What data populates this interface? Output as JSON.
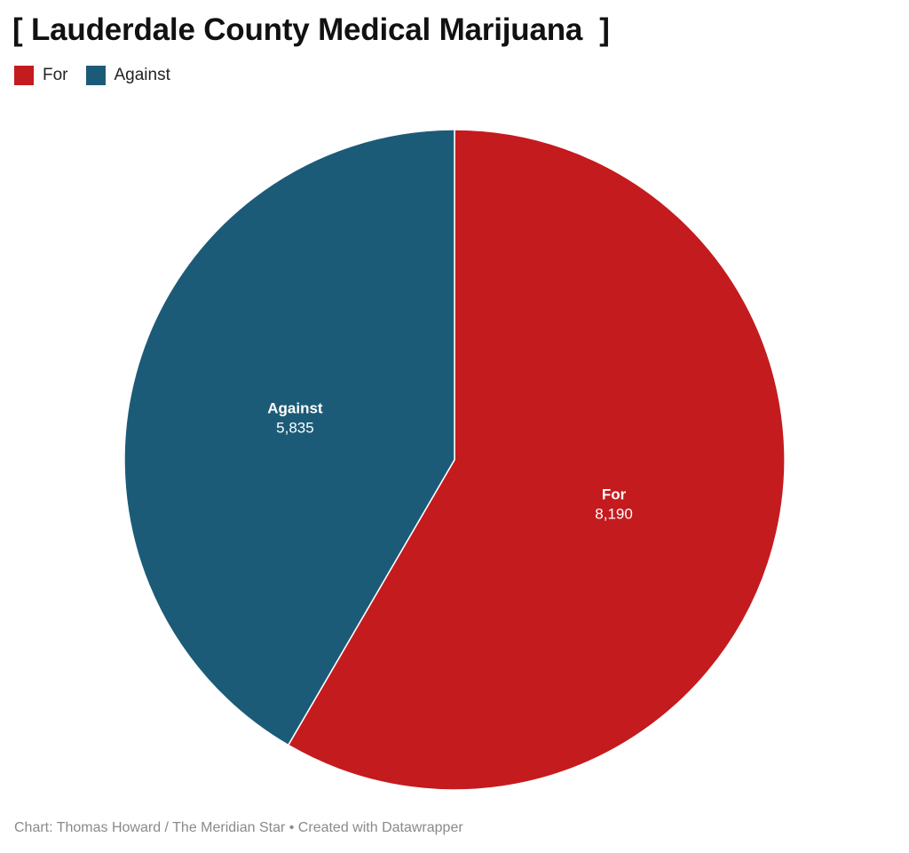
{
  "chart_data": {
    "type": "pie",
    "title": "[ Lauderdale County Medical Marijuana  ]",
    "legend": {
      "placement": "top-left",
      "entries": [
        "For",
        "Against"
      ]
    },
    "slices": [
      {
        "label": "For",
        "value": 8190,
        "value_text": "8,190",
        "color": "#c41b1f"
      },
      {
        "label": "Against",
        "value": 5835,
        "value_text": "5,835",
        "color": "#1c5b78"
      }
    ],
    "start_angle_deg": 0,
    "direction": "clockwise"
  },
  "footer": {
    "credit": "Chart: Thomas Howard / The Meridian Star • Created with Datawrapper"
  }
}
